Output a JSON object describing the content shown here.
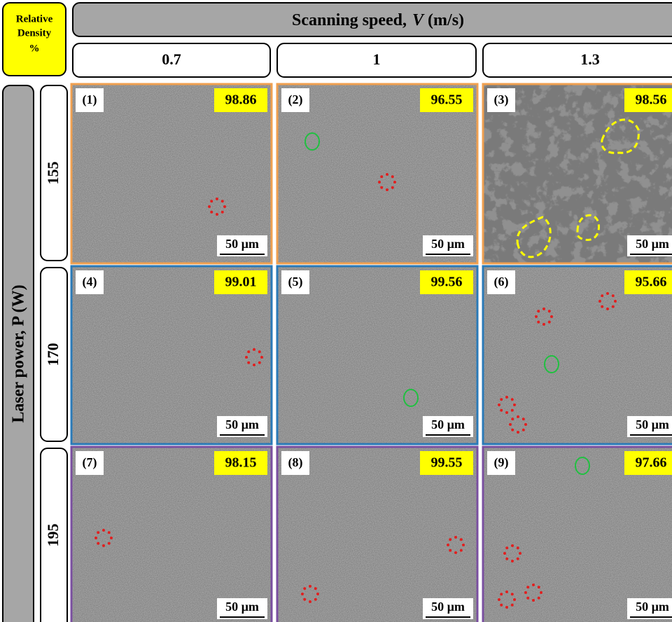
{
  "corner_label": [
    "Relative",
    "Density",
    "%"
  ],
  "column_header": {
    "prefix": "Scanning speed,",
    "symbol": "V",
    "unit": "(m/s)"
  },
  "columns": [
    0.7,
    1,
    1.3
  ],
  "row_header": "Laser power, P (W)",
  "rows": [
    155,
    170,
    195
  ],
  "cells": [
    {
      "label": "(1)",
      "density": 98.86,
      "scale": "50 µm"
    },
    {
      "label": "(2)",
      "density": 96.55,
      "scale": "50 µm"
    },
    {
      "label": "(3)",
      "density": 98.56,
      "scale": "50 µm"
    },
    {
      "label": "(4)",
      "density": 99.01,
      "scale": "50 µm"
    },
    {
      "label": "(5)",
      "density": 99.56,
      "scale": "50 µm"
    },
    {
      "label": "(6)",
      "density": 95.66,
      "scale": "50 µm"
    },
    {
      "label": "(7)",
      "density": 98.15,
      "scale": "50 µm"
    },
    {
      "label": "(8)",
      "density": 99.55,
      "scale": "50 µm"
    },
    {
      "label": "(9)",
      "density": 97.66,
      "scale": "50 µm"
    }
  ]
}
